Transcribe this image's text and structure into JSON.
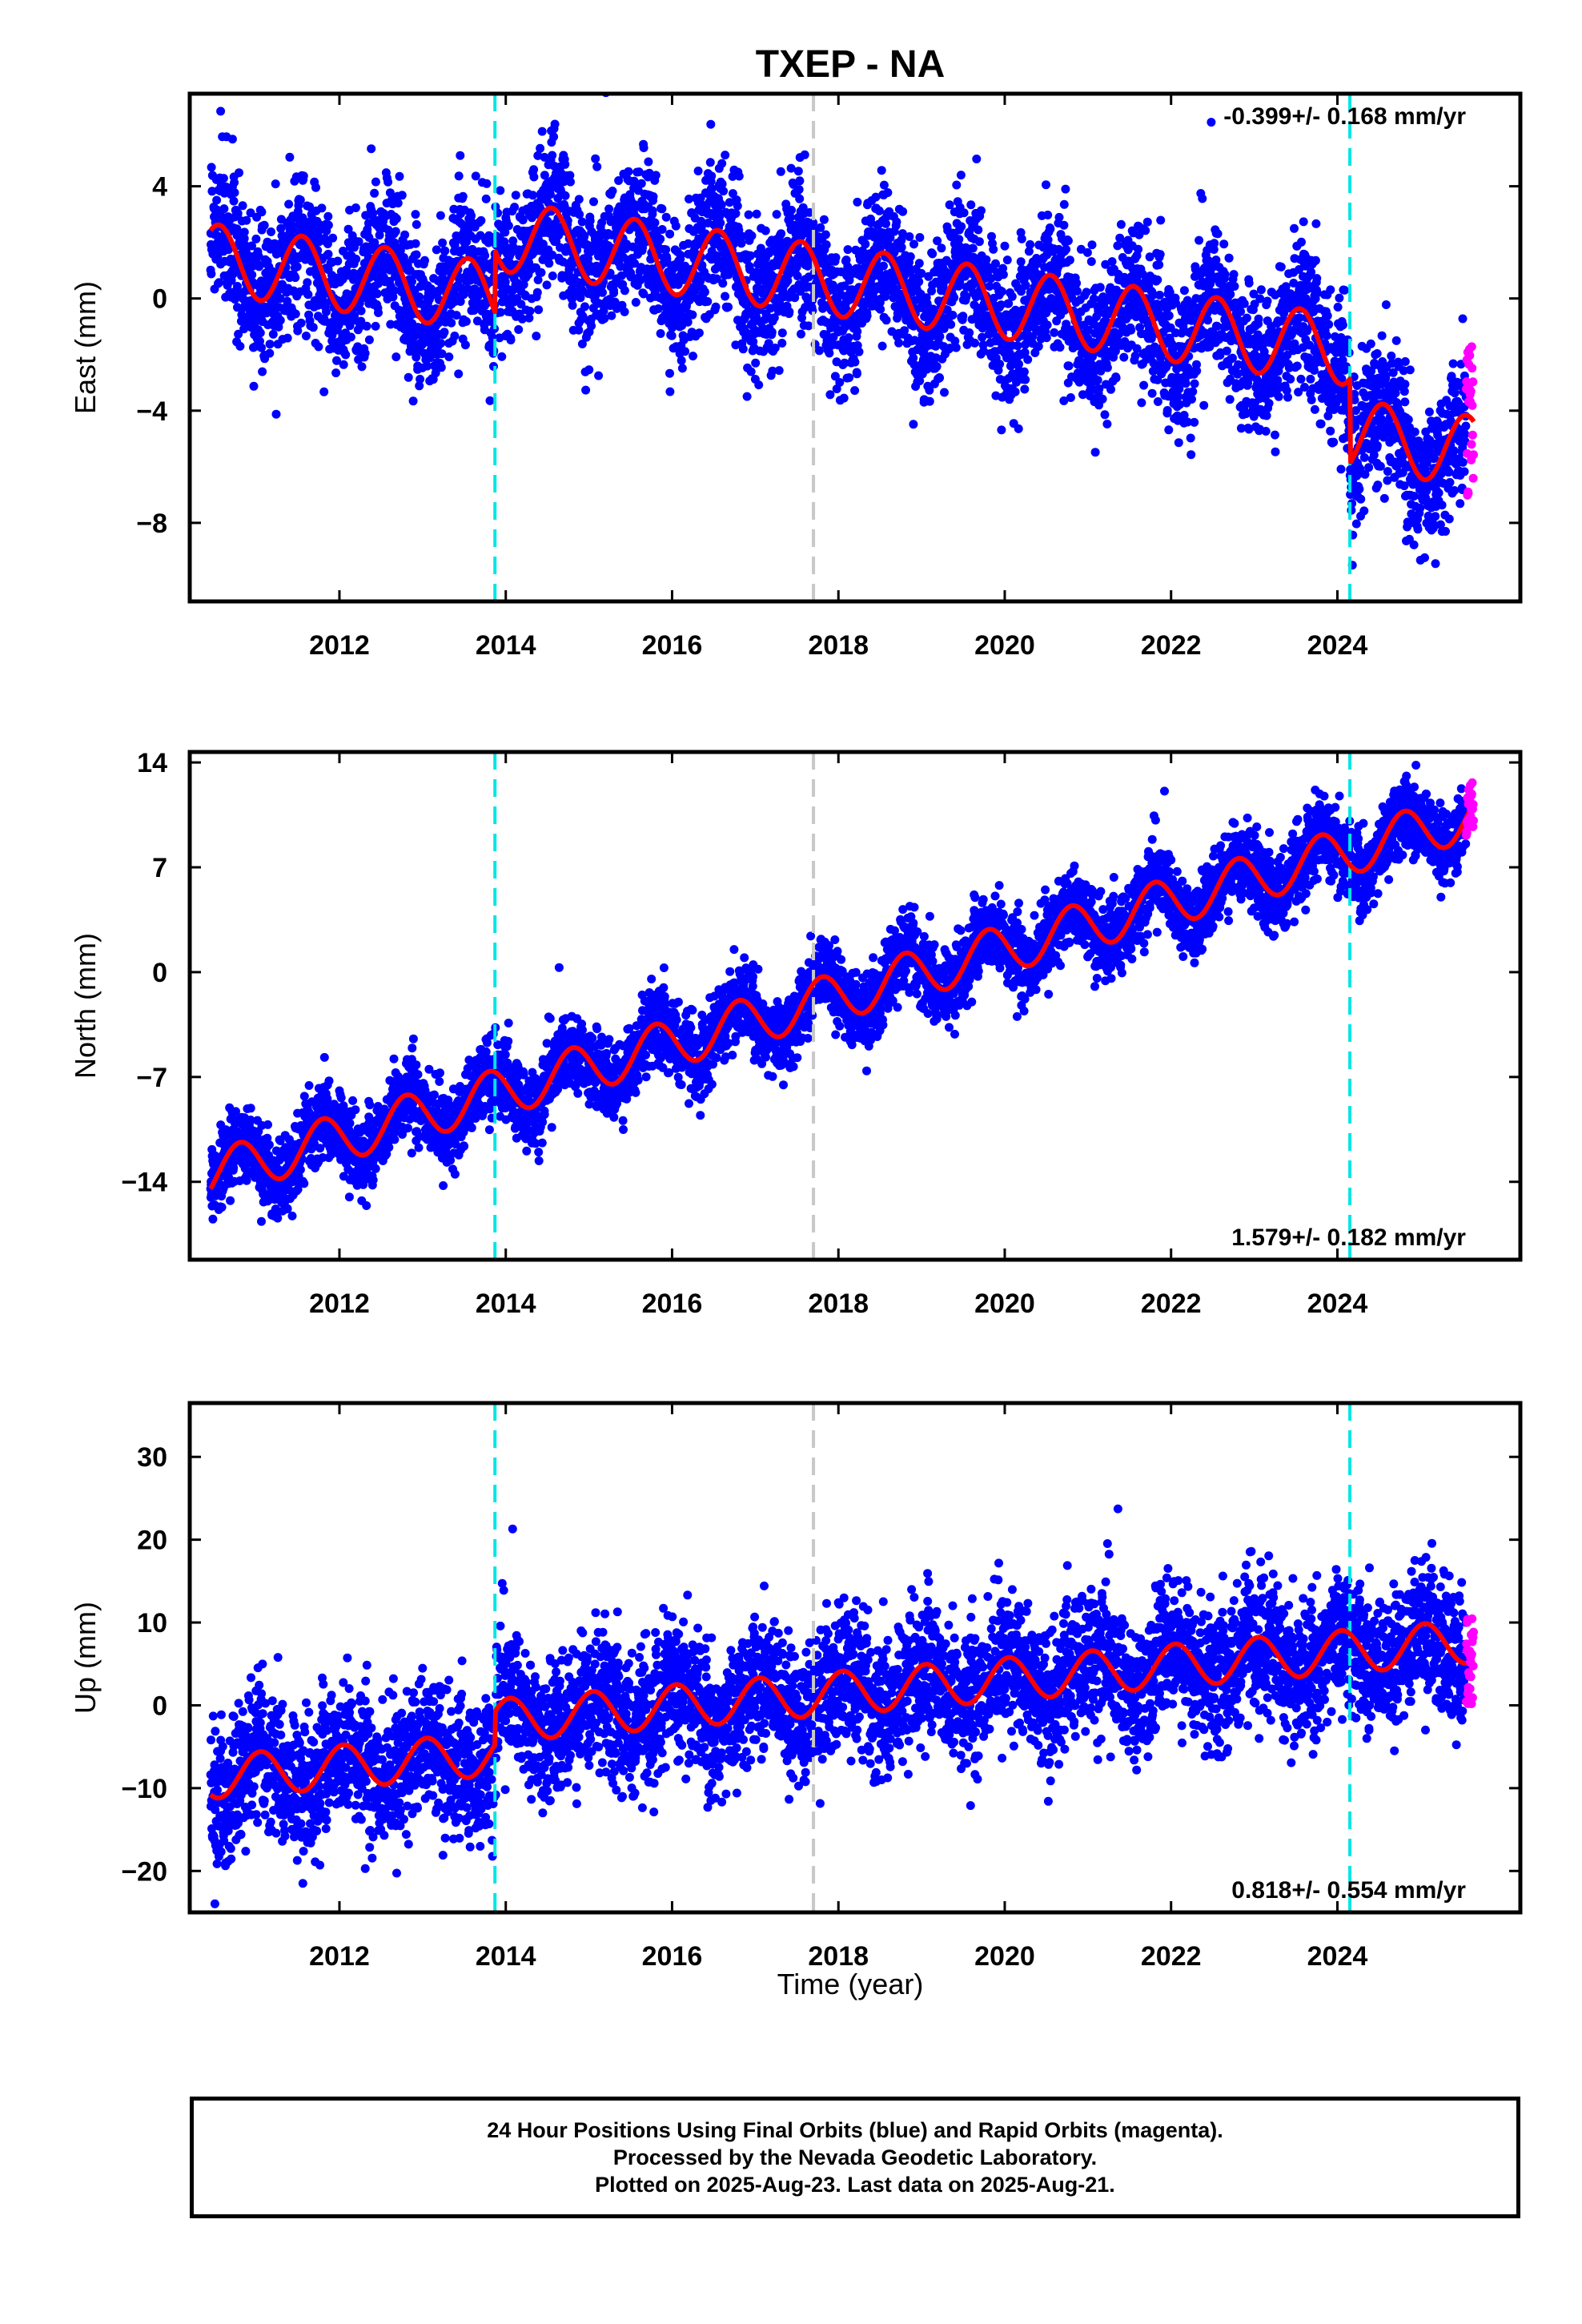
{
  "title": "TXEP - NA",
  "xlabel": "Time (year)",
  "footer": {
    "line1": "24 Hour Positions Using Final Orbits (blue) and Rapid Orbits (magenta).",
    "line2": "Processed by the Nevada Geodetic Laboratory.",
    "line3": "Plotted on 2025-Aug-23. Last data on 2025-Aug-21."
  },
  "colors": {
    "final_orbits": "#0000ff",
    "rapid_orbits": "#ff00ff",
    "model": "#ff0000",
    "equipment_change": "#00e5e5",
    "other_event": "#c8c8c8"
  },
  "chart_data": [
    {
      "type": "scatter",
      "panel": "east",
      "ylabel": "East (mm)",
      "rate_label": "-0.399+/- 0.168 mm/yr",
      "xlim": [
        2010.2,
        2026.2
      ],
      "ylim": [
        -10.8,
        7.3
      ],
      "xticks": [
        2012,
        2014,
        2016,
        2018,
        2020,
        2022,
        2024
      ],
      "yticks": [
        4,
        0,
        -4,
        -8
      ],
      "grid": false,
      "vlines": [
        {
          "x": 2013.87,
          "style": "cyan-dashed"
        },
        {
          "x": 2017.7,
          "style": "gray-dashed"
        },
        {
          "x": 2024.15,
          "style": "cyan-dashed"
        }
      ],
      "trend": {
        "rate": -0.399,
        "offset_at_2018": 0.6,
        "annual_amplitude": 1.25,
        "annual_phase": 0.3,
        "steps": [
          {
            "x": 2013.87,
            "dy": 2.2
          },
          {
            "x": 2024.15,
            "dy": -3.0
          }
        ]
      },
      "scatter_sigma": 1.3,
      "series": [
        {
          "name": "Final Orbits",
          "x_range": [
            2010.45,
            2025.55
          ],
          "count": 5400
        },
        {
          "name": "Rapid Orbits",
          "x_range": [
            2025.55,
            2025.64
          ],
          "count": 26,
          "spread": 3.0
        }
      ]
    },
    {
      "type": "scatter",
      "panel": "north",
      "ylabel": "North (mm)",
      "rate_label": "1.579+/- 0.182 mm/yr",
      "xlim": [
        2010.2,
        2026.2
      ],
      "ylim": [
        -19.2,
        14.7
      ],
      "xticks": [
        2012,
        2014,
        2016,
        2018,
        2020,
        2022,
        2024
      ],
      "yticks": [
        14,
        7,
        0,
        -7,
        -14
      ],
      "grid": false,
      "vlines": [
        {
          "x": 2013.87,
          "style": "cyan-dashed"
        },
        {
          "x": 2017.7,
          "style": "gray-dashed"
        },
        {
          "x": 2024.15,
          "style": "cyan-dashed"
        }
      ],
      "trend": {
        "rate": 1.579,
        "offset_at_2018": -1.6,
        "annual_amplitude": 1.6,
        "annual_phase": 0.55,
        "steps": []
      },
      "scatter_sigma": 1.3,
      "series": [
        {
          "name": "Final Orbits",
          "x_range": [
            2010.45,
            2025.55
          ],
          "count": 5400
        },
        {
          "name": "Rapid Orbits",
          "x_range": [
            2025.55,
            2025.64
          ],
          "count": 26,
          "spread": 1.6
        }
      ]
    },
    {
      "type": "scatter",
      "panel": "up",
      "ylabel": "Up (mm)",
      "rate_label": "0.818+/- 0.554 mm/yr",
      "xlim": [
        2010.2,
        2026.2
      ],
      "ylim": [
        -25,
        36.5
      ],
      "xticks": [
        2012,
        2014,
        2016,
        2018,
        2020,
        2022,
        2024
      ],
      "yticks": [
        30,
        20,
        10,
        0,
        -10,
        -20
      ],
      "grid": false,
      "vlines": [
        {
          "x": 2013.87,
          "style": "cyan-dashed"
        },
        {
          "x": 2017.7,
          "style": "gray-dashed"
        },
        {
          "x": 2024.15,
          "style": "cyan-dashed"
        }
      ],
      "trend": {
        "rate": 0.818,
        "offset_at_2018": 1.5,
        "annual_amplitude": 2.6,
        "annual_phase": 0.8,
        "steps": [
          {
            "x": 2013.87,
            "dy": 4.0
          }
        ]
      },
      "scatter_sigma": 4.2,
      "series": [
        {
          "name": "Final Orbits",
          "x_range": [
            2010.45,
            2025.55
          ],
          "count": 5400
        },
        {
          "name": "Rapid Orbits",
          "x_range": [
            2025.55,
            2025.64
          ],
          "count": 26,
          "spread": 5.5
        }
      ]
    }
  ]
}
